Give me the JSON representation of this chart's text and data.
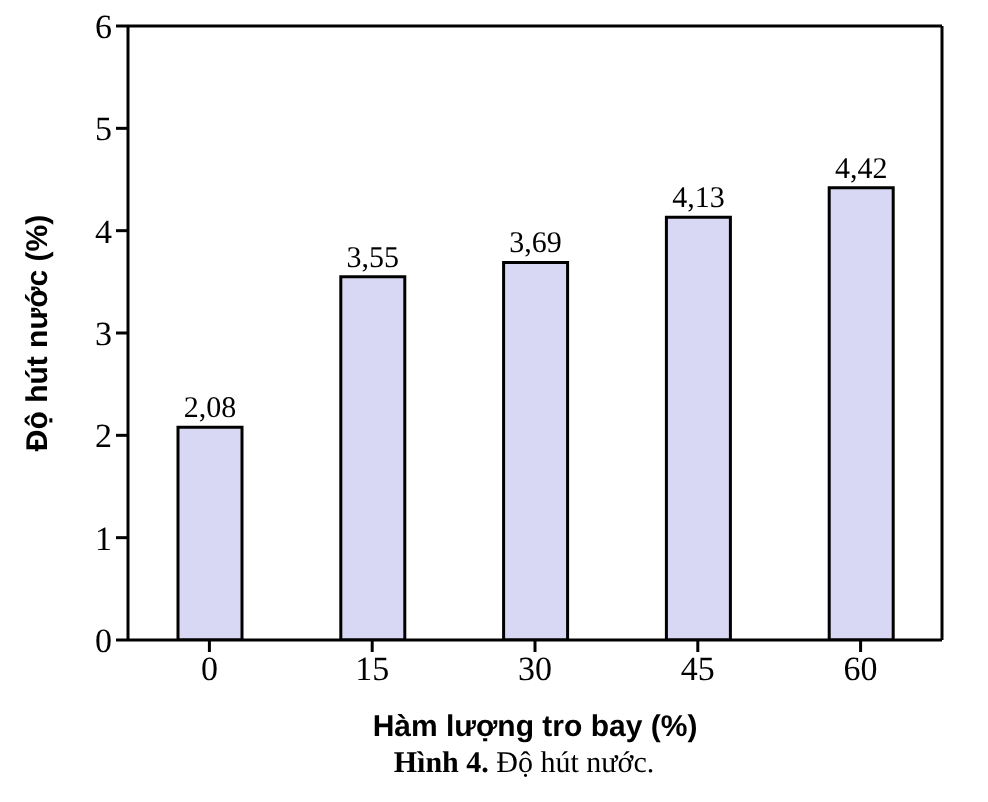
{
  "chart_data": {
    "type": "bar",
    "xlabel": "Hàm lượng tro bay (%)",
    "ylabel": "Độ hút nước  (%)",
    "categories": [
      "0",
      "15",
      "30",
      "45",
      "60"
    ],
    "values": [
      2.08,
      3.55,
      3.69,
      4.13,
      4.42
    ],
    "value_labels": [
      "2,08",
      "3,55",
      "3,69",
      "4,13",
      "4,42"
    ],
    "color": "#d8d8f4",
    "ylim": [
      0,
      6
    ],
    "yticks": [
      0,
      1,
      2,
      3,
      4,
      5,
      6
    ],
    "annotations": [
      "Hình 4. Độ hút nước."
    ]
  }
}
